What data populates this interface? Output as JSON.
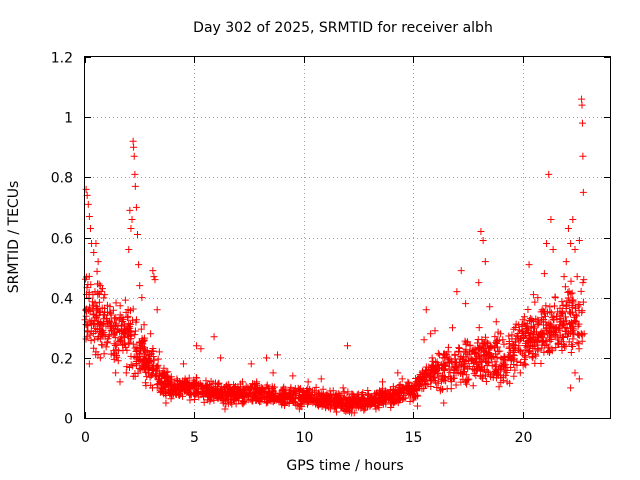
{
  "chart_data": {
    "type": "scatter",
    "title": "Day 302 of 2025, SRMTID for receiver albh",
    "xlabel": "GPS time / hours",
    "ylabel": "SRMTID / TECUs",
    "xlim": [
      0,
      24
    ],
    "ylim": [
      0,
      1.2
    ],
    "xticks": [
      0,
      5,
      10,
      15,
      20
    ],
    "xtick_labels": [
      "0",
      "5",
      "10",
      "15",
      "20"
    ],
    "yticks": [
      0,
      0.2,
      0.4,
      0.6,
      0.8,
      1,
      1.2
    ],
    "ytick_labels": [
      "0",
      "0.2",
      "0.4",
      "0.6",
      "0.8",
      "1",
      "1.2"
    ],
    "grid": true,
    "marker": "+",
    "color": "#ff0000",
    "series": [
      {
        "name": "SRMTID",
        "trend": [
          [
            0.0,
            0.38
          ],
          [
            0.5,
            0.34
          ],
          [
            1.0,
            0.3
          ],
          [
            1.5,
            0.27
          ],
          [
            2.0,
            0.27
          ],
          [
            2.5,
            0.22
          ],
          [
            3.0,
            0.18
          ],
          [
            3.5,
            0.12
          ],
          [
            4.0,
            0.1
          ],
          [
            5.0,
            0.1
          ],
          [
            6.0,
            0.08
          ],
          [
            7.0,
            0.08
          ],
          [
            8.0,
            0.08
          ],
          [
            9.0,
            0.07
          ],
          [
            10.0,
            0.07
          ],
          [
            11.0,
            0.06
          ],
          [
            12.0,
            0.05
          ],
          [
            13.0,
            0.06
          ],
          [
            14.0,
            0.07
          ],
          [
            15.0,
            0.09
          ],
          [
            15.5,
            0.14
          ],
          [
            16.0,
            0.15
          ],
          [
            17.0,
            0.17
          ],
          [
            18.0,
            0.21
          ],
          [
            19.0,
            0.19
          ],
          [
            20.0,
            0.26
          ],
          [
            21.0,
            0.29
          ],
          [
            22.0,
            0.31
          ],
          [
            22.8,
            0.34
          ]
        ],
        "spread": [
          [
            0.0,
            0.2
          ],
          [
            2.0,
            0.16
          ],
          [
            3.0,
            0.1
          ],
          [
            4.0,
            0.05
          ],
          [
            14.0,
            0.04
          ],
          [
            15.0,
            0.05
          ],
          [
            16.0,
            0.08
          ],
          [
            18.0,
            0.12
          ],
          [
            20.0,
            0.12
          ],
          [
            22.8,
            0.18
          ]
        ],
        "points": [
          [
            0.05,
            0.76
          ],
          [
            0.1,
            0.74
          ],
          [
            0.15,
            0.71
          ],
          [
            0.2,
            0.67
          ],
          [
            0.25,
            0.63
          ],
          [
            0.3,
            0.58
          ],
          [
            0.4,
            0.55
          ],
          [
            0.5,
            0.58
          ],
          [
            0.6,
            0.52
          ],
          [
            0.7,
            0.44
          ],
          [
            0.8,
            0.43
          ],
          [
            0.9,
            0.41
          ],
          [
            0.1,
            0.27
          ],
          [
            0.2,
            0.18
          ],
          [
            0.3,
            0.31
          ],
          [
            0.5,
            0.22
          ],
          [
            0.7,
            0.2
          ],
          [
            1.0,
            0.33
          ],
          [
            1.2,
            0.29
          ],
          [
            1.4,
            0.15
          ],
          [
            1.6,
            0.12
          ],
          [
            1.8,
            0.31
          ],
          [
            2.0,
            0.56
          ],
          [
            2.05,
            0.69
          ],
          [
            2.1,
            0.63
          ],
          [
            2.15,
            0.66
          ],
          [
            2.2,
            0.92
          ],
          [
            2.22,
            0.9
          ],
          [
            2.25,
            0.87
          ],
          [
            2.28,
            0.81
          ],
          [
            2.3,
            0.77
          ],
          [
            2.35,
            0.7
          ],
          [
            2.4,
            0.61
          ],
          [
            2.45,
            0.51
          ],
          [
            2.5,
            0.44
          ],
          [
            2.6,
            0.4
          ],
          [
            2.7,
            0.31
          ],
          [
            2.8,
            0.18
          ],
          [
            2.9,
            0.15
          ],
          [
            3.0,
            0.28
          ],
          [
            3.1,
            0.49
          ],
          [
            3.15,
            0.47
          ],
          [
            3.2,
            0.46
          ],
          [
            3.3,
            0.36
          ],
          [
            3.4,
            0.22
          ],
          [
            3.5,
            0.12
          ],
          [
            3.6,
            0.08
          ],
          [
            3.7,
            0.05
          ],
          [
            4.2,
            0.13
          ],
          [
            4.5,
            0.18
          ],
          [
            4.8,
            0.06
          ],
          [
            5.1,
            0.24
          ],
          [
            5.3,
            0.23
          ],
          [
            5.5,
            0.08
          ],
          [
            5.9,
            0.27
          ],
          [
            6.2,
            0.2
          ],
          [
            6.4,
            0.03
          ],
          [
            6.8,
            0.06
          ],
          [
            7.2,
            0.12
          ],
          [
            7.6,
            0.18
          ],
          [
            8.0,
            0.1
          ],
          [
            8.3,
            0.2
          ],
          [
            8.6,
            0.15
          ],
          [
            8.8,
            0.21
          ],
          [
            9.1,
            0.05
          ],
          [
            9.5,
            0.14
          ],
          [
            9.8,
            0.03
          ],
          [
            10.2,
            0.12
          ],
          [
            10.5,
            0.09
          ],
          [
            10.8,
            0.13
          ],
          [
            11.2,
            0.09
          ],
          [
            11.5,
            0.02
          ],
          [
            11.8,
            0.1
          ],
          [
            12.0,
            0.24
          ],
          [
            12.2,
            0.08
          ],
          [
            12.5,
            0.04
          ],
          [
            12.8,
            0.03
          ],
          [
            13.1,
            0.07
          ],
          [
            13.3,
            0.03
          ],
          [
            13.6,
            0.12
          ],
          [
            13.9,
            0.07
          ],
          [
            14.1,
            0.09
          ],
          [
            14.3,
            0.15
          ],
          [
            14.5,
            0.13
          ],
          [
            14.8,
            0.08
          ],
          [
            15.0,
            0.06
          ],
          [
            15.2,
            0.04
          ],
          [
            15.5,
            0.26
          ],
          [
            15.6,
            0.36
          ],
          [
            15.8,
            0.28
          ],
          [
            16.0,
            0.29
          ],
          [
            16.2,
            0.21
          ],
          [
            16.4,
            0.05
          ],
          [
            16.6,
            0.22
          ],
          [
            16.8,
            0.3
          ],
          [
            17.0,
            0.42
          ],
          [
            17.2,
            0.49
          ],
          [
            17.4,
            0.38
          ],
          [
            17.6,
            0.24
          ],
          [
            17.8,
            0.16
          ],
          [
            18.0,
            0.45
          ],
          [
            18.1,
            0.62
          ],
          [
            18.2,
            0.59
          ],
          [
            18.3,
            0.52
          ],
          [
            18.5,
            0.37
          ],
          [
            18.8,
            0.32
          ],
          [
            19.0,
            0.28
          ],
          [
            19.3,
            0.12
          ],
          [
            19.6,
            0.24
          ],
          [
            19.9,
            0.15
          ],
          [
            20.1,
            0.18
          ],
          [
            20.3,
            0.51
          ],
          [
            20.5,
            0.41
          ],
          [
            20.7,
            0.4
          ],
          [
            20.9,
            0.36
          ],
          [
            21.0,
            0.48
          ],
          [
            21.1,
            0.58
          ],
          [
            21.2,
            0.81
          ],
          [
            21.3,
            0.66
          ],
          [
            21.4,
            0.56
          ],
          [
            21.5,
            0.4
          ],
          [
            21.7,
            0.31
          ],
          [
            21.9,
            0.47
          ],
          [
            22.0,
            0.52
          ],
          [
            22.1,
            0.63
          ],
          [
            22.2,
            0.58
          ],
          [
            22.3,
            0.66
          ],
          [
            22.4,
            0.56
          ],
          [
            22.5,
            0.47
          ],
          [
            22.6,
            0.59
          ],
          [
            22.7,
            1.06
          ],
          [
            22.72,
            1.04
          ],
          [
            22.74,
            0.98
          ],
          [
            22.76,
            0.87
          ],
          [
            22.78,
            0.75
          ],
          [
            22.8,
            0.46
          ],
          [
            22.82,
            0.28
          ],
          [
            22.6,
            0.13
          ],
          [
            22.4,
            0.15
          ],
          [
            22.2,
            0.1
          ]
        ]
      }
    ]
  }
}
